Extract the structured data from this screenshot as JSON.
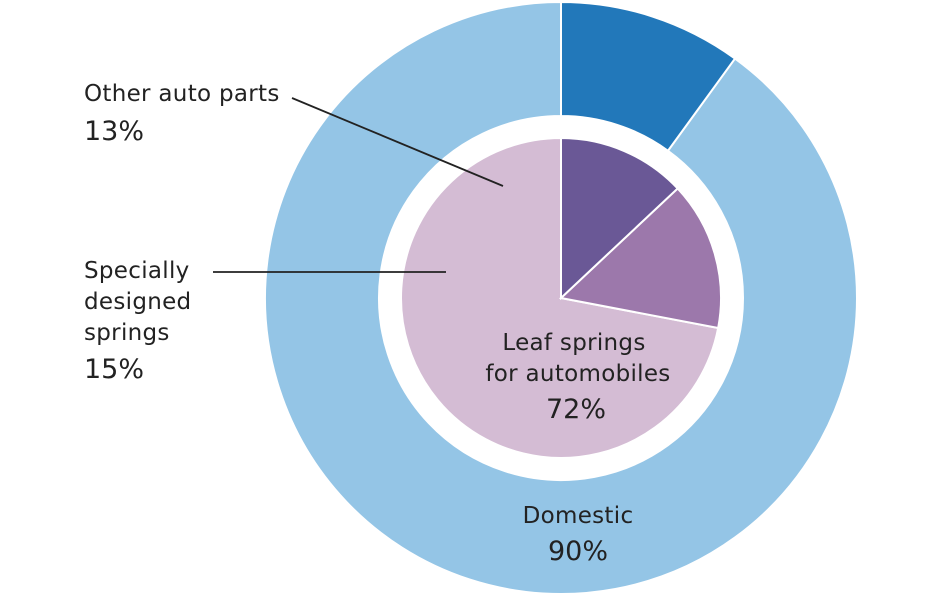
{
  "chart_data": {
    "type": "pie",
    "title": "",
    "rings": [
      {
        "ring": "outer",
        "slices": [
          {
            "label": "Domestic",
            "value": 90,
            "display": "90%",
            "color": "#94c5e6"
          },
          {
            "label": "",
            "value": 10,
            "display": "",
            "color": "#2278ba"
          }
        ]
      },
      {
        "ring": "inner",
        "slices": [
          {
            "label": "Leaf springs for automobiles",
            "label_lines": [
              "Leaf springs",
              "for automobiles"
            ],
            "value": 72,
            "display": "72%",
            "color": "#d4bcd4"
          },
          {
            "label": "Specially designed springs",
            "label_lines": [
              "Specially",
              "designed",
              "springs"
            ],
            "value": 15,
            "display": "15%",
            "color": "#9c78ab"
          },
          {
            "label": "Other auto parts",
            "label_lines": [
              "Other auto parts"
            ],
            "value": 13,
            "display": "13%",
            "color": "#6a5896"
          }
        ]
      }
    ],
    "legend": "none"
  }
}
